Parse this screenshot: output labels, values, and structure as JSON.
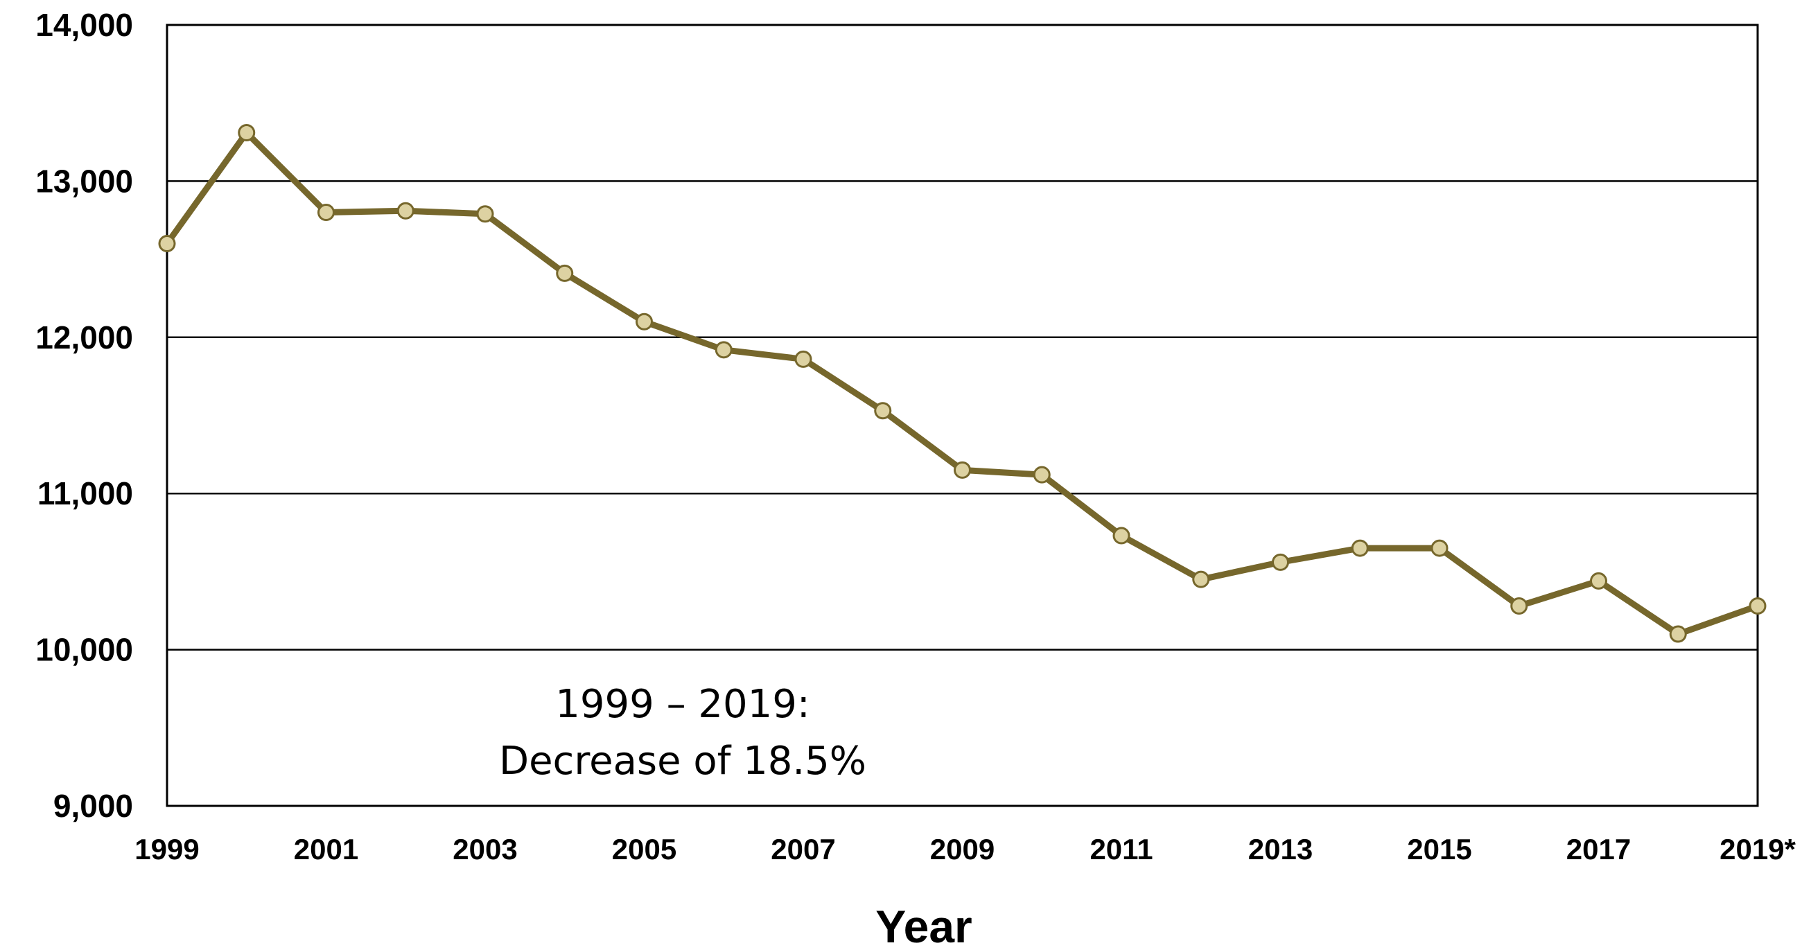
{
  "chart_data": {
    "type": "line",
    "title": "",
    "xlabel": "Year",
    "ylabel": "",
    "x": [
      "1999",
      "2000",
      "2001",
      "2002",
      "2003",
      "2004",
      "2005",
      "2006",
      "2007",
      "2008",
      "2009",
      "2010",
      "2011",
      "2012",
      "2013",
      "2014",
      "2015",
      "2016",
      "2017",
      "2018",
      "2019"
    ],
    "series": [
      {
        "values": [
          12600,
          13310,
          12800,
          12810,
          12790,
          12410,
          12100,
          11920,
          11860,
          11530,
          11150,
          11120,
          10730,
          10450,
          10560,
          10650,
          10650,
          10280,
          10440,
          10100,
          10280
        ]
      }
    ],
    "x_tick_labels": [
      "1999",
      "2001",
      "2003",
      "2005",
      "2007",
      "2009",
      "2011",
      "2013",
      "2015",
      "2017",
      "2019*"
    ],
    "y_tick_labels": [
      "9,000",
      "10,000",
      "11,000",
      "12,000",
      "13,000",
      "14,000"
    ],
    "y_ticks": [
      9000,
      10000,
      11000,
      12000,
      13000,
      14000
    ],
    "ylim": [
      9000,
      14000
    ],
    "grid": true,
    "annotation": {
      "line1": "1999 – 2019:",
      "line2": "Decrease of 18.5%"
    },
    "colors": {
      "line": "#76672c",
      "marker_fill": "#ddd2a2",
      "marker_stroke": "#76672c",
      "grid": "#000000",
      "background": "#ffffff"
    }
  }
}
